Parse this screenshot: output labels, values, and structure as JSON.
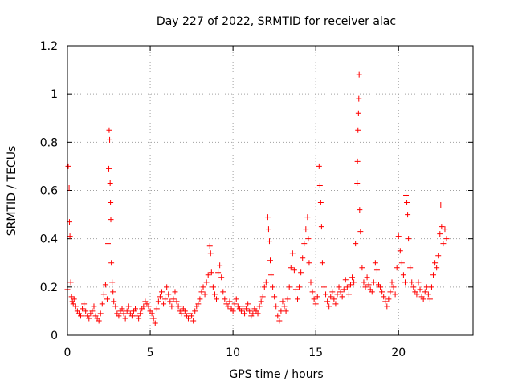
{
  "chart_data": {
    "type": "scatter",
    "title": "Day 227 of 2022, SRMTID for receiver alac",
    "xlabel": "GPS time / hours",
    "ylabel": "SRMTID / TECUs",
    "xlim": [
      0,
      24.5
    ],
    "ylim": [
      0,
      1.2
    ],
    "grid": true,
    "marker": "+",
    "x_ticks": [
      0,
      5,
      10,
      15,
      20
    ],
    "x_tick_labels": [
      "0",
      "5",
      "10",
      "15",
      "20"
    ],
    "y_ticks": [
      0,
      0.2,
      0.4,
      0.6,
      0.8,
      1,
      1.2
    ],
    "y_tick_labels": [
      "0",
      "0.2",
      "0.4",
      "0.6",
      "0.8",
      "1",
      "1.2"
    ],
    "series": [
      {
        "name": "SRMTID",
        "color": "#ff0000",
        "x": [
          0.0,
          0.05,
          0.1,
          0.12,
          0.15,
          0.2,
          0.25,
          0.3,
          0.35,
          0.4,
          0.5,
          0.6,
          0.7,
          0.8,
          0.9,
          1.0,
          1.1,
          1.2,
          1.3,
          1.4,
          1.5,
          1.6,
          1.7,
          1.8,
          1.9,
          2.0,
          2.1,
          2.2,
          2.3,
          2.4,
          2.45,
          2.5,
          2.52,
          2.55,
          2.58,
          2.6,
          2.62,
          2.65,
          2.7,
          2.75,
          2.8,
          2.9,
          3.0,
          3.1,
          3.2,
          3.3,
          3.4,
          3.5,
          3.6,
          3.7,
          3.8,
          3.9,
          4.0,
          4.1,
          4.2,
          4.3,
          4.4,
          4.5,
          4.6,
          4.7,
          4.8,
          4.9,
          5.0,
          5.1,
          5.2,
          5.3,
          5.4,
          5.5,
          5.6,
          5.7,
          5.8,
          5.9,
          6.0,
          6.1,
          6.2,
          6.3,
          6.4,
          6.5,
          6.6,
          6.7,
          6.8,
          6.9,
          7.0,
          7.1,
          7.2,
          7.3,
          7.4,
          7.5,
          7.6,
          7.7,
          7.8,
          7.9,
          8.0,
          8.1,
          8.2,
          8.3,
          8.4,
          8.5,
          8.6,
          8.65,
          8.7,
          8.8,
          8.9,
          9.0,
          9.1,
          9.2,
          9.3,
          9.4,
          9.5,
          9.6,
          9.7,
          9.8,
          9.9,
          10.0,
          10.1,
          10.2,
          10.3,
          10.4,
          10.5,
          10.6,
          10.7,
          10.8,
          10.9,
          11.0,
          11.1,
          11.2,
          11.3,
          11.4,
          11.5,
          11.6,
          11.7,
          11.8,
          11.9,
          12.0,
          12.1,
          12.15,
          12.2,
          12.25,
          12.3,
          12.4,
          12.5,
          12.6,
          12.7,
          12.8,
          12.9,
          13.0,
          13.1,
          13.2,
          13.3,
          13.4,
          13.5,
          13.6,
          13.7,
          13.8,
          13.9,
          14.0,
          14.1,
          14.2,
          14.3,
          14.4,
          14.5,
          14.55,
          14.6,
          14.7,
          14.8,
          14.9,
          15.0,
          15.1,
          15.2,
          15.25,
          15.3,
          15.35,
          15.4,
          15.5,
          15.6,
          15.7,
          15.8,
          15.9,
          16.0,
          16.1,
          16.2,
          16.3,
          16.4,
          16.5,
          16.6,
          16.7,
          16.8,
          16.9,
          17.0,
          17.1,
          17.2,
          17.3,
          17.4,
          17.5,
          17.52,
          17.55,
          17.58,
          17.6,
          17.62,
          17.65,
          17.7,
          17.8,
          17.9,
          18.0,
          18.1,
          18.2,
          18.3,
          18.4,
          18.5,
          18.6,
          18.7,
          18.8,
          18.9,
          19.0,
          19.1,
          19.2,
          19.3,
          19.4,
          19.5,
          19.6,
          19.7,
          19.8,
          19.9,
          20.0,
          20.1,
          20.2,
          20.3,
          20.4,
          20.45,
          20.5,
          20.55,
          20.6,
          20.7,
          20.8,
          20.9,
          21.0,
          21.1,
          21.2,
          21.3,
          21.4,
          21.5,
          21.6,
          21.7,
          21.8,
          21.9,
          22.0,
          22.1,
          22.2,
          22.3,
          22.4,
          22.5,
          22.55,
          22.6,
          22.7,
          22.8,
          22.9
        ],
        "y": [
          0.19,
          0.7,
          0.61,
          0.47,
          0.41,
          0.22,
          0.16,
          0.14,
          0.13,
          0.15,
          0.12,
          0.1,
          0.09,
          0.08,
          0.11,
          0.13,
          0.1,
          0.08,
          0.07,
          0.09,
          0.1,
          0.12,
          0.08,
          0.07,
          0.06,
          0.09,
          0.13,
          0.17,
          0.21,
          0.15,
          0.38,
          0.69,
          0.85,
          0.81,
          0.63,
          0.55,
          0.48,
          0.3,
          0.22,
          0.18,
          0.14,
          0.12,
          0.09,
          0.08,
          0.1,
          0.11,
          0.09,
          0.07,
          0.1,
          0.12,
          0.09,
          0.08,
          0.1,
          0.11,
          0.08,
          0.07,
          0.09,
          0.11,
          0.12,
          0.14,
          0.13,
          0.12,
          0.1,
          0.09,
          0.07,
          0.05,
          0.11,
          0.14,
          0.16,
          0.18,
          0.13,
          0.15,
          0.2,
          0.17,
          0.14,
          0.12,
          0.15,
          0.18,
          0.14,
          0.12,
          0.1,
          0.09,
          0.11,
          0.1,
          0.08,
          0.07,
          0.09,
          0.08,
          0.06,
          0.1,
          0.12,
          0.13,
          0.15,
          0.18,
          0.2,
          0.17,
          0.22,
          0.25,
          0.37,
          0.34,
          0.26,
          0.2,
          0.17,
          0.15,
          0.26,
          0.29,
          0.24,
          0.18,
          0.15,
          0.13,
          0.12,
          0.14,
          0.11,
          0.1,
          0.13,
          0.15,
          0.12,
          0.11,
          0.1,
          0.12,
          0.09,
          0.11,
          0.13,
          0.1,
          0.08,
          0.09,
          0.11,
          0.1,
          0.09,
          0.12,
          0.14,
          0.16,
          0.2,
          0.22,
          0.49,
          0.44,
          0.39,
          0.31,
          0.25,
          0.2,
          0.16,
          0.12,
          0.08,
          0.06,
          0.1,
          0.14,
          0.12,
          0.1,
          0.15,
          0.2,
          0.28,
          0.34,
          0.27,
          0.19,
          0.15,
          0.2,
          0.26,
          0.32,
          0.38,
          0.44,
          0.49,
          0.4,
          0.3,
          0.22,
          0.18,
          0.15,
          0.13,
          0.16,
          0.7,
          0.62,
          0.55,
          0.45,
          0.3,
          0.2,
          0.17,
          0.14,
          0.12,
          0.16,
          0.18,
          0.15,
          0.13,
          0.17,
          0.2,
          0.18,
          0.16,
          0.19,
          0.23,
          0.2,
          0.17,
          0.21,
          0.24,
          0.22,
          0.38,
          0.63,
          0.72,
          0.85,
          0.92,
          0.98,
          1.08,
          0.52,
          0.43,
          0.28,
          0.22,
          0.2,
          0.24,
          0.21,
          0.19,
          0.18,
          0.22,
          0.3,
          0.27,
          0.21,
          0.2,
          0.18,
          0.16,
          0.14,
          0.12,
          0.15,
          0.18,
          0.22,
          0.2,
          0.17,
          0.28,
          0.41,
          0.35,
          0.3,
          0.25,
          0.22,
          0.58,
          0.55,
          0.5,
          0.4,
          0.28,
          0.22,
          0.2,
          0.18,
          0.17,
          0.22,
          0.19,
          0.16,
          0.15,
          0.18,
          0.2,
          0.17,
          0.15,
          0.2,
          0.25,
          0.3,
          0.28,
          0.33,
          0.42,
          0.54,
          0.45,
          0.38,
          0.44,
          0.4
        ]
      }
    ]
  }
}
